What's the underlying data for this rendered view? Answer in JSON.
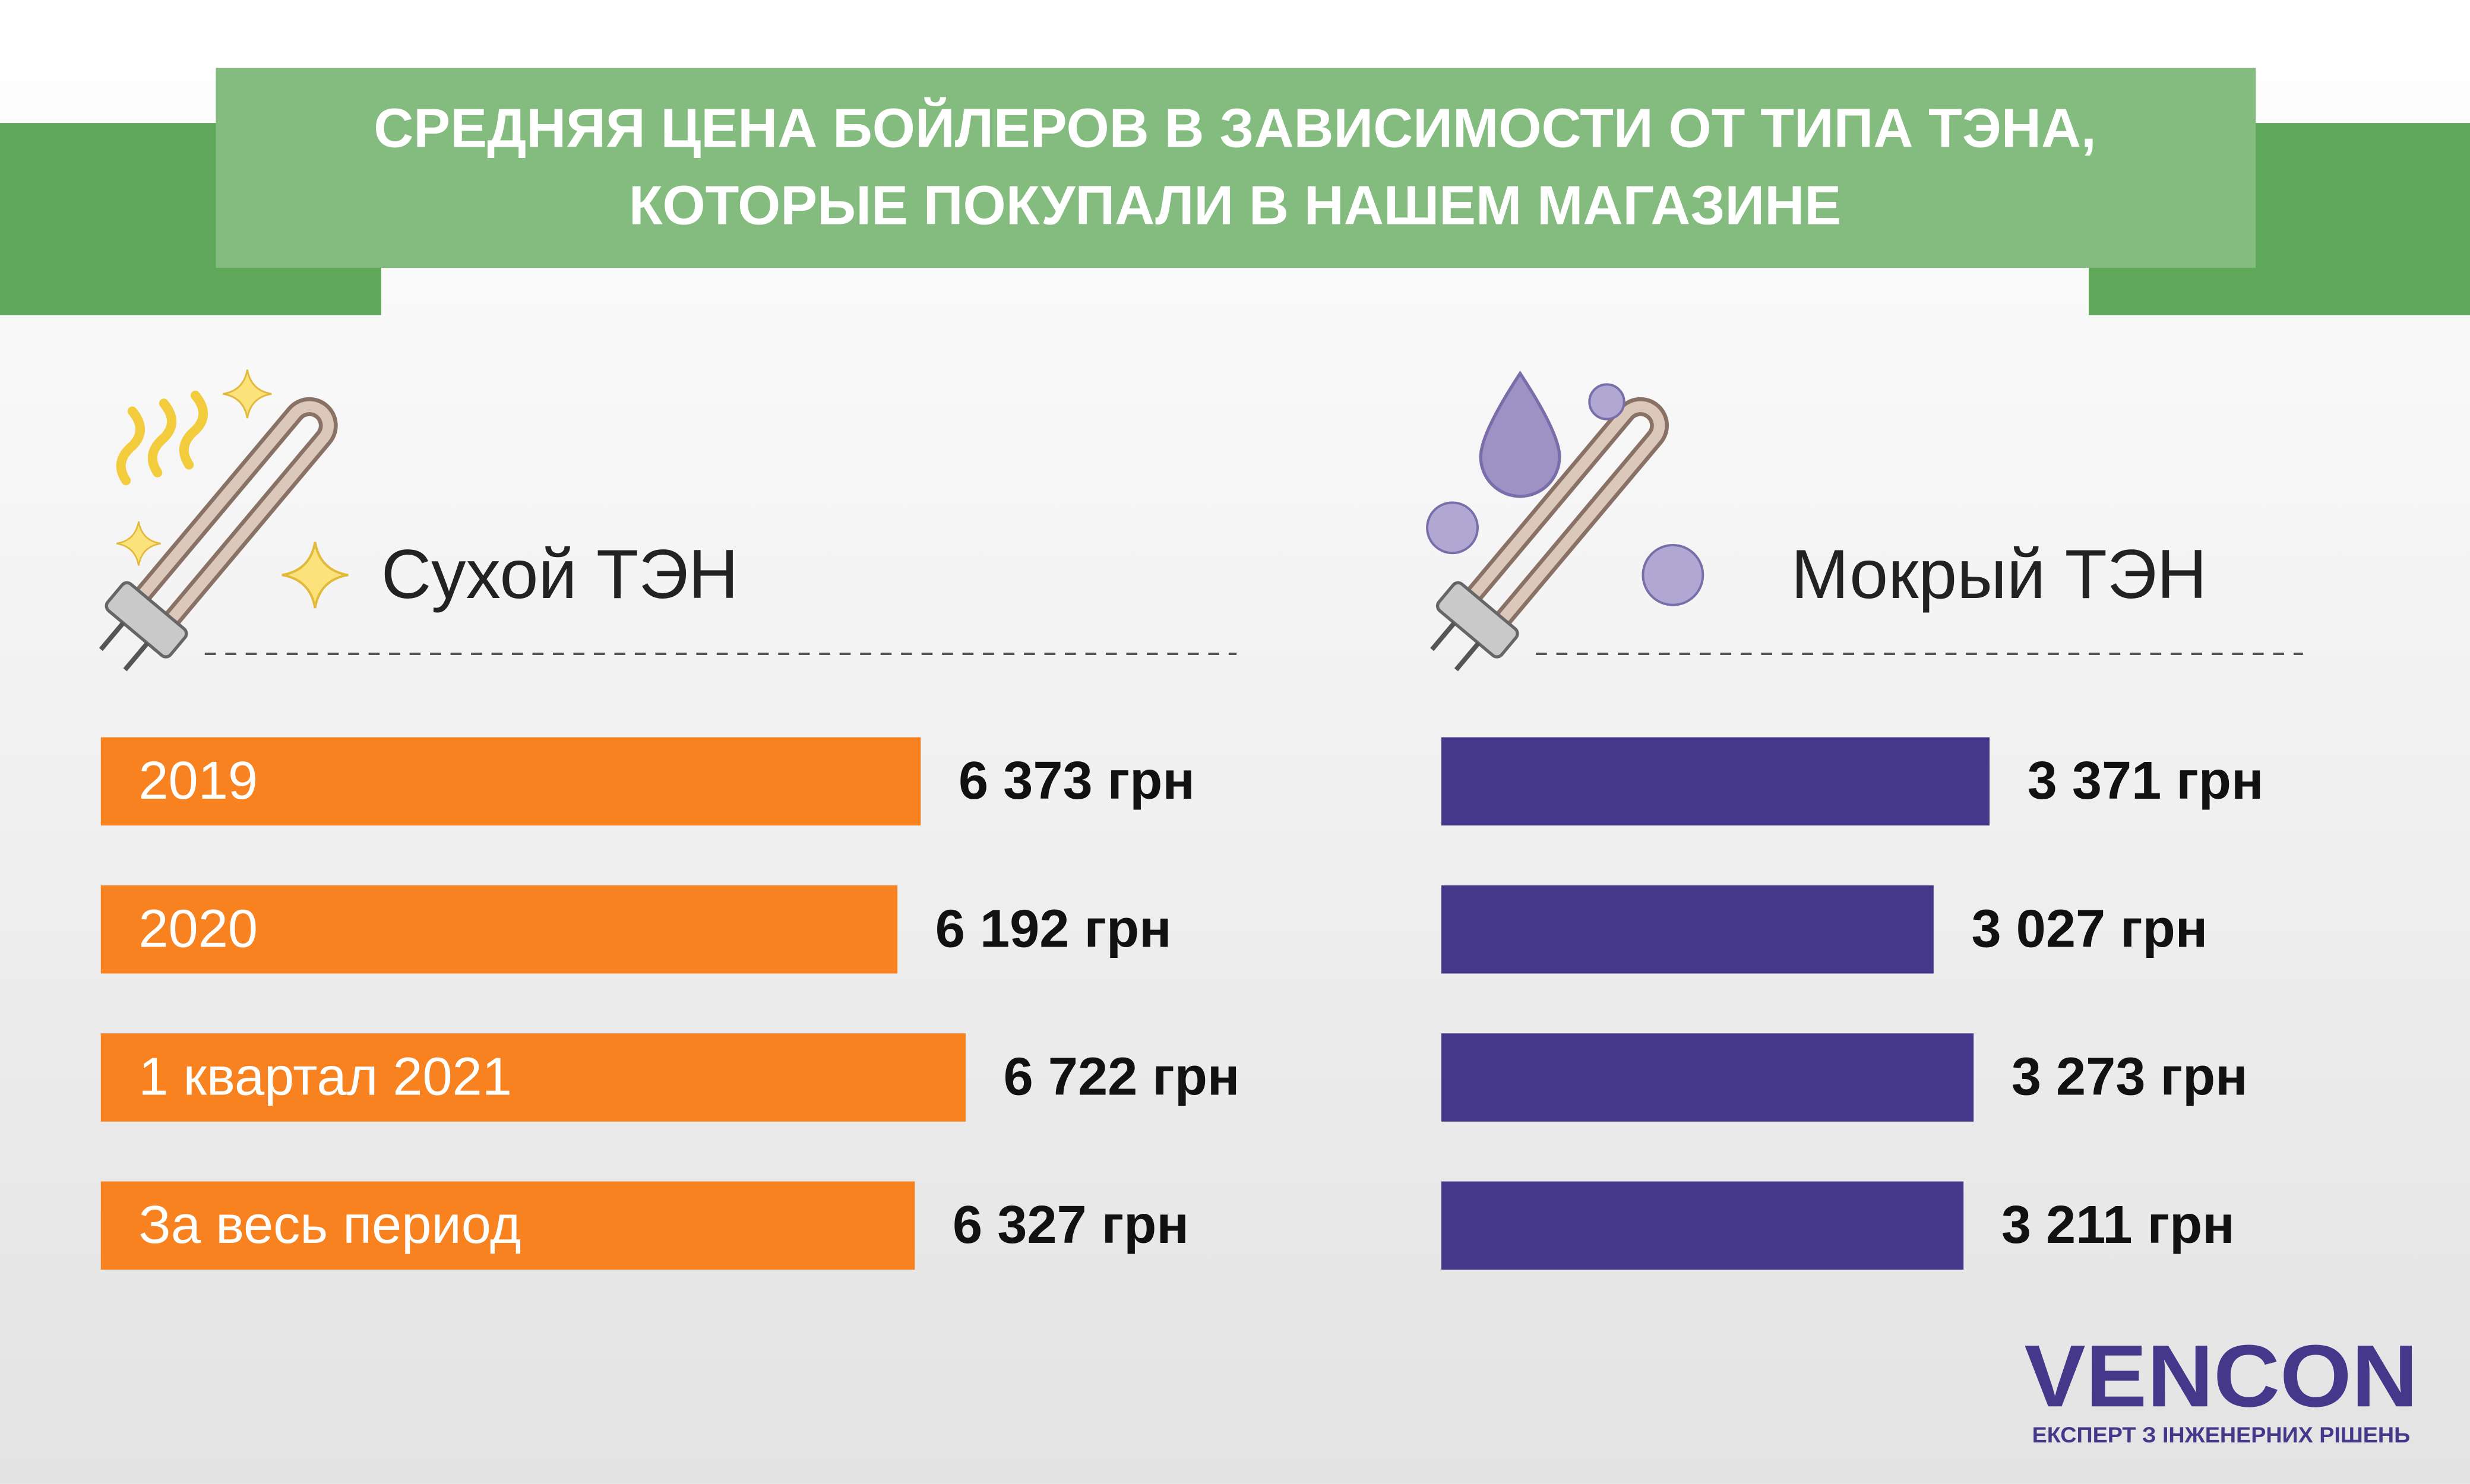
{
  "header": {
    "title_lines": [
      "СРЕДНЯЯ ЦЕНА БОЙЛЕРОВ В ЗАВИСИМОСТИ ОТ ТИПА ТЭНА,",
      "КОТОРЫЕ ПОКУПАЛИ В НАШЕМ МАГАЗИНЕ"
    ]
  },
  "chart_data": [
    {
      "type": "bar",
      "title": "Сухой ТЭН",
      "categories": [
        "2019",
        "2020",
        "1 квартал 2021",
        "За весь период"
      ],
      "values": [
        6373,
        6192,
        6722,
        6327
      ],
      "value_labels": [
        "6 373 грн",
        "6 192 грн",
        "6 722 грн",
        "6 327 грн"
      ],
      "color": "#f7821f"
    },
    {
      "type": "bar",
      "title": "Мокрый ТЭН",
      "values": [
        3371,
        3027,
        3273,
        3211
      ],
      "value_labels": [
        "3 371 грн",
        "3 027 грн",
        "3 273 грн",
        "3 211 грн"
      ],
      "color": "#45378a"
    }
  ],
  "logo": {
    "name": "VENCON",
    "tagline": "ЕКСПЕРТ З ІНЖЕНЕРНИХ РІШЕНЬ"
  }
}
